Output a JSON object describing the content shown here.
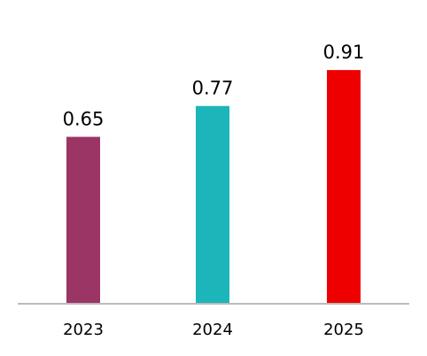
{
  "chart_data": {
    "type": "bar",
    "categories": [
      "2023",
      "2024",
      "2025"
    ],
    "values": [
      0.65,
      0.77,
      0.91
    ],
    "data_labels": [
      "0.65",
      "0.77",
      "0.91"
    ],
    "colors": [
      "#9B3566",
      "#1BB5BA",
      "#EE0000"
    ],
    "axis_color": "#BBBBBB",
    "ylim": [
      0,
      1.0
    ],
    "grid": false,
    "legend": "none",
    "title": "",
    "xlabel": "",
    "ylabel": ""
  }
}
